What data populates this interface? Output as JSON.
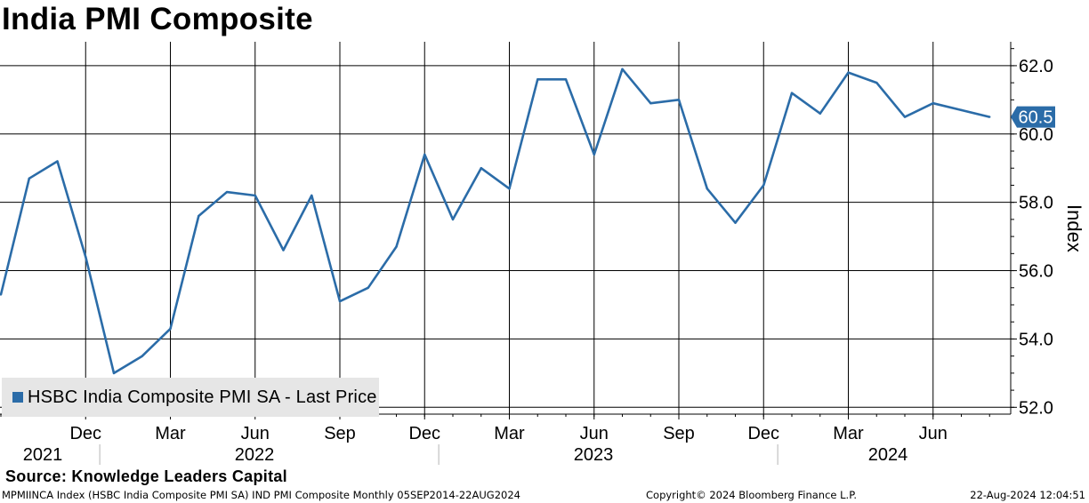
{
  "title": "India PMI Composite",
  "source": "Source: Knowledge Leaders Capital",
  "footer": {
    "left": "MPMIINCA Index (HSBC India Composite PMI SA) IND PMI Composite  Monthly 05SEP2014-22AUG2024",
    "middle": "Copyright© 2024 Bloomberg Finance L.P.",
    "right": "22-Aug-2024 12:04:51"
  },
  "legend": {
    "label": "HSBC India Composite PMI SA - Last Price",
    "color": "#2b6ca8"
  },
  "last_value_label": "60.5",
  "chart_data": {
    "type": "line",
    "title": "India PMI Composite",
    "xlabel": "",
    "ylabel": "Index",
    "ylim": [
      51.8,
      62.7
    ],
    "yticks": [
      "52.0",
      "54.0",
      "56.0",
      "58.0",
      "60.0",
      "62.0"
    ],
    "grid": true,
    "legend_position": "bottom-left",
    "month_ticks": [
      "Dec",
      "Mar",
      "Jun",
      "Sep",
      "Dec",
      "Mar",
      "Jun",
      "Sep",
      "Dec",
      "Mar",
      "Jun"
    ],
    "year_labels": [
      "2021",
      "2022",
      "2023",
      "2024"
    ],
    "series": [
      {
        "name": "HSBC India Composite PMI SA - Last Price",
        "color": "#2b6ca8",
        "x": [
          "2021-09",
          "2021-10",
          "2021-11",
          "2021-12",
          "2022-01",
          "2022-02",
          "2022-03",
          "2022-04",
          "2022-05",
          "2022-06",
          "2022-07",
          "2022-08",
          "2022-09",
          "2022-10",
          "2022-11",
          "2022-12",
          "2023-01",
          "2023-02",
          "2023-03",
          "2023-04",
          "2023-05",
          "2023-06",
          "2023-07",
          "2023-08",
          "2023-09",
          "2023-10",
          "2023-11",
          "2023-12",
          "2024-01",
          "2024-02",
          "2024-03",
          "2024-04",
          "2024-05",
          "2024-06",
          "2024-07",
          "2024-08"
        ],
        "values": [
          55.3,
          58.7,
          59.2,
          56.4,
          53.0,
          53.5,
          54.3,
          57.6,
          58.3,
          58.2,
          56.6,
          58.2,
          55.1,
          55.5,
          56.7,
          59.4,
          57.5,
          59.0,
          58.4,
          61.6,
          61.6,
          59.4,
          61.9,
          60.9,
          61.0,
          58.4,
          57.4,
          58.5,
          61.2,
          60.6,
          61.8,
          61.5,
          60.5,
          60.9,
          60.7,
          60.5
        ]
      }
    ]
  }
}
